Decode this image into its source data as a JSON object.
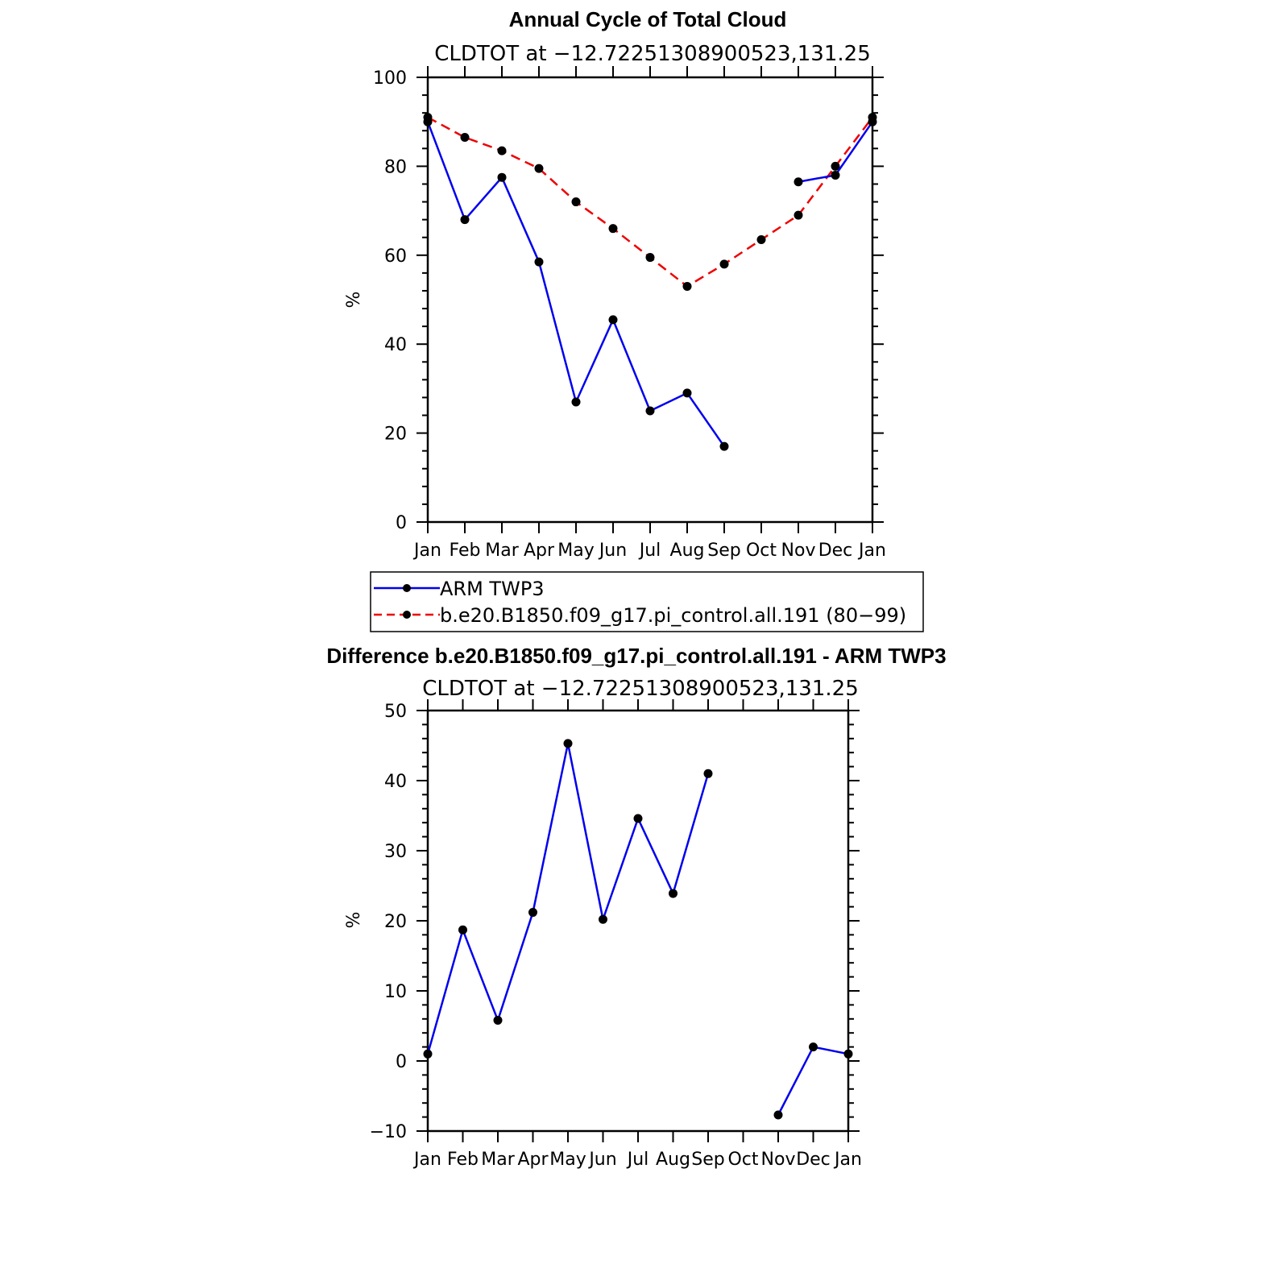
{
  "colors": {
    "obs": "#0000ee",
    "model": "#ee0000",
    "axis": "#000000",
    "marker": "#000000"
  },
  "chart_data": [
    {
      "type": "line",
      "title": "Annual Cycle of Total Cloud",
      "subtitle": "CLDTOT at −12.72251308900523,131.25",
      "ylabel": "%",
      "ylim": [
        0,
        100
      ],
      "yticks": [
        0,
        20,
        40,
        60,
        80,
        100
      ],
      "yticklabels": [
        "0",
        "20",
        "40",
        "60",
        "80",
        "100"
      ],
      "categories": [
        "Jan",
        "Feb",
        "Mar",
        "Apr",
        "May",
        "Jun",
        "Jul",
        "Aug",
        "Sep",
        "Oct",
        "Nov",
        "Dec",
        "Jan"
      ],
      "series": [
        {
          "name": "ARM TWP3",
          "style": "solid",
          "color": "#0000ee",
          "values": [
            90,
            68,
            77.5,
            58.5,
            27,
            45.5,
            25,
            29,
            17,
            null,
            76.5,
            78,
            90
          ]
        },
        {
          "name": "b.e20.B1850.f09_g17.pi_control.all.191 (80−99)",
          "style": "dashed",
          "color": "#ee0000",
          "values": [
            91,
            86.5,
            83.5,
            79.5,
            72,
            66,
            59.5,
            53,
            58,
            63.5,
            69,
            80,
            91
          ]
        }
      ],
      "legend": [
        "ARM TWP3",
        "b.e20.B1850.f09_g17.pi_control.all.191 (80−99)"
      ]
    },
    {
      "type": "line",
      "title": "Difference b.e20.B1850.f09_g17.pi_control.all.191 - ARM TWP3",
      "subtitle": "CLDTOT at −12.72251308900523,131.25",
      "ylabel": "%",
      "ylim": [
        -10,
        50
      ],
      "yticks": [
        -10,
        0,
        10,
        20,
        30,
        40,
        50
      ],
      "yticklabels": [
        "−10",
        "0",
        "10",
        "20",
        "30",
        "40",
        "50"
      ],
      "categories": [
        "Jan",
        "Feb",
        "Mar",
        "Apr",
        "May",
        "Jun",
        "Jul",
        "Aug",
        "Sep",
        "Oct",
        "Nov",
        "Dec",
        "Jan"
      ],
      "series": [
        {
          "style": "solid",
          "color": "#0000ee",
          "values": [
            1,
            18.7,
            5.8,
            21.2,
            45.3,
            20.2,
            34.6,
            23.9,
            41,
            null,
            -7.7,
            2,
            1
          ]
        }
      ]
    }
  ]
}
